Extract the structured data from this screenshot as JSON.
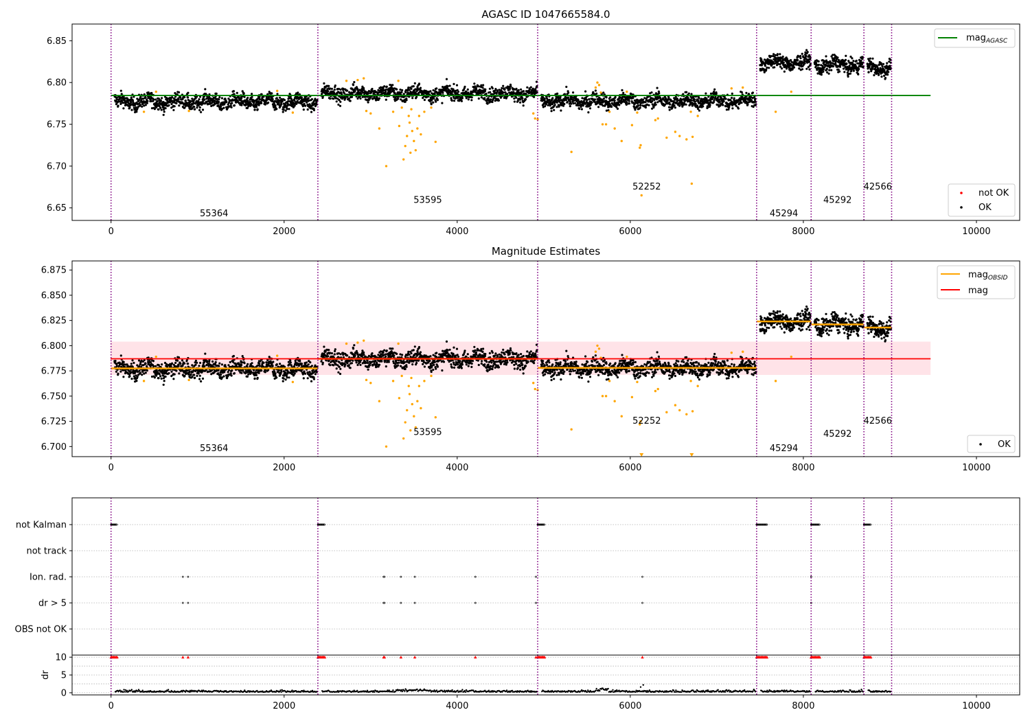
{
  "figure": {
    "type": "matplotlib-figure",
    "colors": {
      "ok": "#000000",
      "not_ok": "#ff0000",
      "suspect": "#ffa500",
      "agasc_line": "#008000",
      "obsid_mag": "#ffa500",
      "mag_line": "#ff0000",
      "mag_band": "#ffc0cb",
      "boundary": "#800080",
      "grid": "#b0b0b0"
    }
  },
  "chart_data": [
    {
      "type": "scatter",
      "title": "AGASC ID 1047665584.0",
      "xlabel": "",
      "ylabel": "",
      "xlim": [
        -450,
        10500
      ],
      "ylim": [
        6.635,
        6.87
      ],
      "xticks": [
        0,
        2000,
        4000,
        6000,
        8000,
        10000
      ],
      "xtick_labels": [
        "0",
        "2000",
        "4000",
        "6000",
        "8000",
        "10000"
      ],
      "yticks": [
        6.65,
        6.7,
        6.75,
        6.8,
        6.85
      ],
      "ytick_labels": [
        "6.65",
        "6.70",
        "6.75",
        "6.80",
        "6.85"
      ],
      "obsid_boundaries": [
        0,
        2390,
        4930,
        7460,
        8090,
        8700,
        9020
      ],
      "observations": [
        {
          "obsid": "55364",
          "x_start": 0,
          "x_end": 2390,
          "mag": 6.777,
          "label_x": 1190,
          "label_y": 6.644
        },
        {
          "obsid": "53595",
          "x_start": 2390,
          "x_end": 4930,
          "mag": 6.787,
          "label_x": 3660,
          "label_y": 6.66
        },
        {
          "obsid": "52252",
          "x_start": 4930,
          "x_end": 7460,
          "mag": 6.778,
          "label_x": 6190,
          "label_y": 6.676
        },
        {
          "obsid": "45294",
          "x_start": 7460,
          "x_end": 8090,
          "mag": 6.824,
          "label_x": 7775,
          "label_y": 6.644
        },
        {
          "obsid": "45292",
          "x_start": 8090,
          "x_end": 8700,
          "mag": 6.821,
          "label_x": 8395,
          "label_y": 6.66
        },
        {
          "obsid": "42566",
          "x_start": 8700,
          "x_end": 9020,
          "mag": 6.818,
          "label_x": 8860,
          "label_y": 6.676
        }
      ],
      "reference_lines": [
        {
          "name": "mag",
          "subscript": "AGASC",
          "y": 6.7845,
          "x_range": [
            0,
            9470
          ],
          "color": "#008000"
        }
      ],
      "scatter_series": [
        {
          "name": "not OK",
          "color": "#ff0000"
        },
        {
          "name": "OK",
          "color": "#000000"
        }
      ],
      "outliers": [
        [
          380,
          6.765
        ],
        [
          520,
          6.789
        ],
        [
          900,
          6.766
        ],
        [
          1920,
          6.79
        ],
        [
          2100,
          6.764
        ],
        [
          2720,
          6.802
        ],
        [
          2850,
          6.803
        ],
        [
          2920,
          6.805
        ],
        [
          2950,
          6.766
        ],
        [
          3000,
          6.763
        ],
        [
          3100,
          6.745
        ],
        [
          3180,
          6.7
        ],
        [
          3260,
          6.765
        ],
        [
          3320,
          6.802
        ],
        [
          3330,
          6.748
        ],
        [
          3360,
          6.77
        ],
        [
          3380,
          6.708
        ],
        [
          3400,
          6.724
        ],
        [
          3420,
          6.736
        ],
        [
          3440,
          6.76
        ],
        [
          3450,
          6.752
        ],
        [
          3460,
          6.716
        ],
        [
          3470,
          6.768
        ],
        [
          3480,
          6.742
        ],
        [
          3500,
          6.73
        ],
        [
          3520,
          6.719
        ],
        [
          3540,
          6.745
        ],
        [
          3560,
          6.76
        ],
        [
          3580,
          6.738
        ],
        [
          3620,
          6.765
        ],
        [
          3700,
          6.77
        ],
        [
          3750,
          6.729
        ],
        [
          4880,
          6.763
        ],
        [
          4900,
          6.757
        ],
        [
          4930,
          6.756
        ],
        [
          5320,
          6.717
        ],
        [
          5600,
          6.794
        ],
        [
          5620,
          6.8
        ],
        [
          5640,
          6.797
        ],
        [
          5660,
          6.788
        ],
        [
          5680,
          6.75
        ],
        [
          5720,
          6.75
        ],
        [
          5760,
          6.765
        ],
        [
          5820,
          6.745
        ],
        [
          5900,
          6.73
        ],
        [
          5960,
          6.789
        ],
        [
          6020,
          6.749
        ],
        [
          6080,
          6.764
        ],
        [
          6110,
          6.722
        ],
        [
          6120,
          6.725
        ],
        [
          6130,
          6.665
        ],
        [
          6290,
          6.755
        ],
        [
          6320,
          6.757
        ],
        [
          6420,
          6.734
        ],
        [
          6520,
          6.741
        ],
        [
          6570,
          6.736
        ],
        [
          6650,
          6.732
        ],
        [
          6700,
          6.765
        ],
        [
          6720,
          6.735
        ],
        [
          6780,
          6.76
        ],
        [
          7170,
          6.793
        ],
        [
          7300,
          6.794
        ],
        [
          7680,
          6.765
        ],
        [
          7860,
          6.789
        ],
        [
          6710,
          6.679
        ]
      ],
      "legend": [
        {
          "label": "mag",
          "subscript": "AGASC",
          "position": "upper right"
        },
        {
          "label": "not OK",
          "position": "lower right"
        },
        {
          "label": "OK",
          "position": "lower right"
        }
      ]
    },
    {
      "type": "scatter",
      "title": "Magnitude Estimates",
      "xlabel": "",
      "ylabel": "",
      "xlim": [
        -450,
        10500
      ],
      "ylim": [
        6.69,
        6.884
      ],
      "xticks": [
        0,
        2000,
        4000,
        6000,
        8000,
        10000
      ],
      "xtick_labels": [
        "0",
        "2000",
        "4000",
        "6000",
        "8000",
        "10000"
      ],
      "yticks": [
        6.7,
        6.725,
        6.75,
        6.775,
        6.8,
        6.825,
        6.85,
        6.875
      ],
      "ytick_labels": [
        "6.700",
        "6.725",
        "6.750",
        "6.775",
        "6.800",
        "6.825",
        "6.850",
        "6.875"
      ],
      "obsid_boundaries": [
        0,
        2390,
        4930,
        7460,
        8090,
        8700,
        9020
      ],
      "observations": [
        {
          "obsid": "55364",
          "label_x": 1190,
          "label_y": 6.699
        },
        {
          "obsid": "53595",
          "label_x": 3660,
          "label_y": 6.715
        },
        {
          "obsid": "52252",
          "label_x": 6190,
          "label_y": 6.726
        },
        {
          "obsid": "45294",
          "label_x": 7775,
          "label_y": 6.699
        },
        {
          "obsid": "45292",
          "label_x": 8395,
          "label_y": 6.713
        },
        {
          "obsid": "42566",
          "label_x": 8860,
          "label_y": 6.726
        }
      ],
      "series": [
        {
          "name": "mag",
          "subscript": "OBSID",
          "color": "#ffa500",
          "segments": [
            {
              "x": [
                0,
                2390
              ],
              "y": 6.7775
            },
            {
              "x": [
                2390,
                4930
              ],
              "y": 6.787
            },
            {
              "x": [
                4930,
                7460
              ],
              "y": 6.778
            },
            {
              "x": [
                7460,
                8090
              ],
              "y": 6.824
            },
            {
              "x": [
                8090,
                8700
              ],
              "y": 6.821
            },
            {
              "x": [
                8700,
                9020
              ],
              "y": 6.818
            }
          ]
        },
        {
          "name": "mag",
          "color": "#ff0000",
          "y": 6.787,
          "x_range": [
            -5,
            9470
          ],
          "band": [
            6.771,
            6.804
          ]
        }
      ],
      "legend": [
        {
          "label": "mag",
          "subscript": "OBSID",
          "position": "upper right"
        },
        {
          "label": "mag",
          "position": "upper right"
        },
        {
          "label": "OK",
          "position": "lower right"
        }
      ]
    },
    {
      "type": "scatter",
      "title": "",
      "xlabel": "",
      "ylabel": "",
      "xlim": [
        -450,
        10500
      ],
      "categories": [
        "not Kalman",
        "not track",
        "Ion. rad.",
        "dr > 5",
        "OBS not OK"
      ],
      "flag_points": {
        "not Kalman": [
          [
            0,
            70
          ],
          [
            2390,
            2470
          ],
          [
            4930,
            5010
          ],
          [
            7460,
            7580
          ],
          [
            8090,
            8190
          ],
          [
            8700,
            8780
          ]
        ],
        "not track": [],
        "Ion. rad.": [
          830,
          890,
          3150,
          3160,
          3350,
          3510,
          4210,
          4910,
          6140,
          8090
        ],
        "dr > 5": [
          830,
          890,
          3150,
          3160,
          3350,
          3510,
          4210,
          4910,
          6140,
          8090
        ],
        "OBS not OK": []
      },
      "grid": "horizontal dotted"
    },
    {
      "type": "scatter",
      "title": "",
      "xlabel": "",
      "ylabel": "dr",
      "xlim": [
        -450,
        10500
      ],
      "ylim": [
        -0.6,
        10.6
      ],
      "yticks": [
        0,
        5,
        10
      ],
      "ytick_labels": [
        "0",
        "5",
        "10"
      ],
      "xticks": [
        0,
        2000,
        4000,
        6000,
        8000,
        10000
      ],
      "xtick_labels": [
        "0",
        "2000",
        "4000",
        "6000",
        "8000",
        "10000"
      ],
      "capped_value": 10,
      "baseline": 0.2,
      "grid": "horizontal dotted"
    }
  ]
}
